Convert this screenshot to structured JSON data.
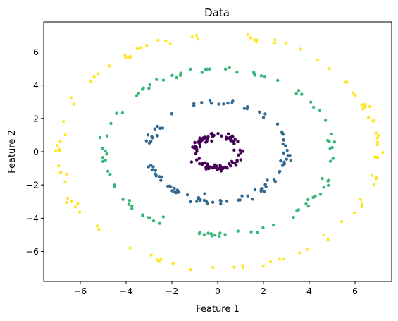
{
  "chart_data": {
    "type": "scatter",
    "title": "Data",
    "xlabel": "Feature 1",
    "ylabel": "Feature 2",
    "xlim": [
      -7.6,
      7.6
    ],
    "ylim": [
      -7.8,
      7.8
    ],
    "x_ticks": [
      -6,
      -4,
      -2,
      0,
      2,
      4,
      6
    ],
    "y_ticks": [
      -6,
      -4,
      -2,
      0,
      2,
      4,
      6
    ],
    "x_tick_labels": [
      "−6",
      "−4",
      "−2",
      "0",
      "2",
      "4",
      "6"
    ],
    "y_tick_labels": [
      "−6",
      "−4",
      "−2",
      "0",
      "2",
      "4",
      "6"
    ],
    "grid": false,
    "legend": "none",
    "series": [
      {
        "radius": 1.0,
        "color": "#440154",
        "count": 100,
        "noise": 0.1
      },
      {
        "radius": 3.0,
        "color": "#31688e",
        "count": 100,
        "noise": 0.1
      },
      {
        "radius": 5.0,
        "color": "#35b779",
        "count": 100,
        "noise": 0.1
      },
      {
        "radius": 7.0,
        "color": "#fde725",
        "count": 100,
        "noise": 0.1
      }
    ]
  }
}
